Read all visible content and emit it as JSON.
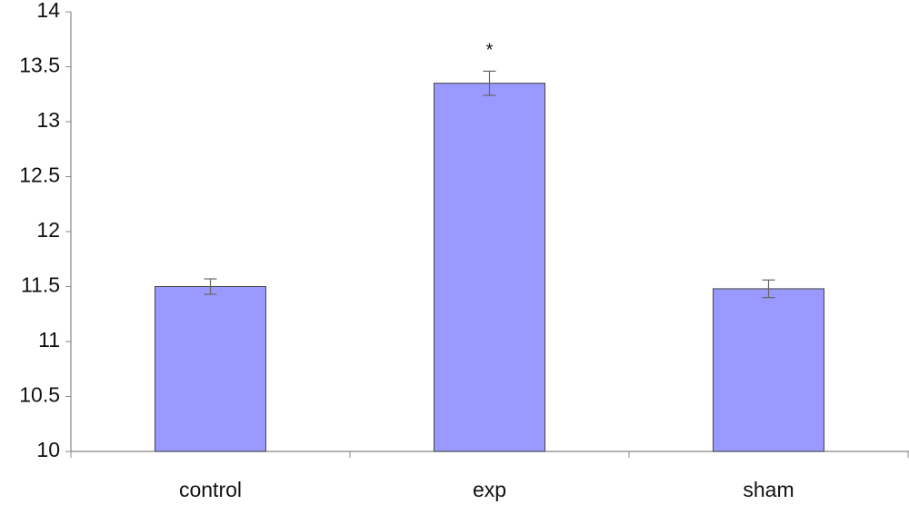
{
  "chart_data": {
    "type": "bar",
    "categories": [
      "control",
      "exp",
      "sham"
    ],
    "values": [
      11.5,
      13.35,
      11.48
    ],
    "errors": [
      0.07,
      0.11,
      0.08
    ],
    "color": "#9999ff",
    "annotation": "*",
    "ylim": [
      10,
      14
    ],
    "yticks": [
      10,
      10.5,
      11,
      11.5,
      12,
      12.5,
      13,
      13.5,
      14
    ],
    "grid": false
  }
}
